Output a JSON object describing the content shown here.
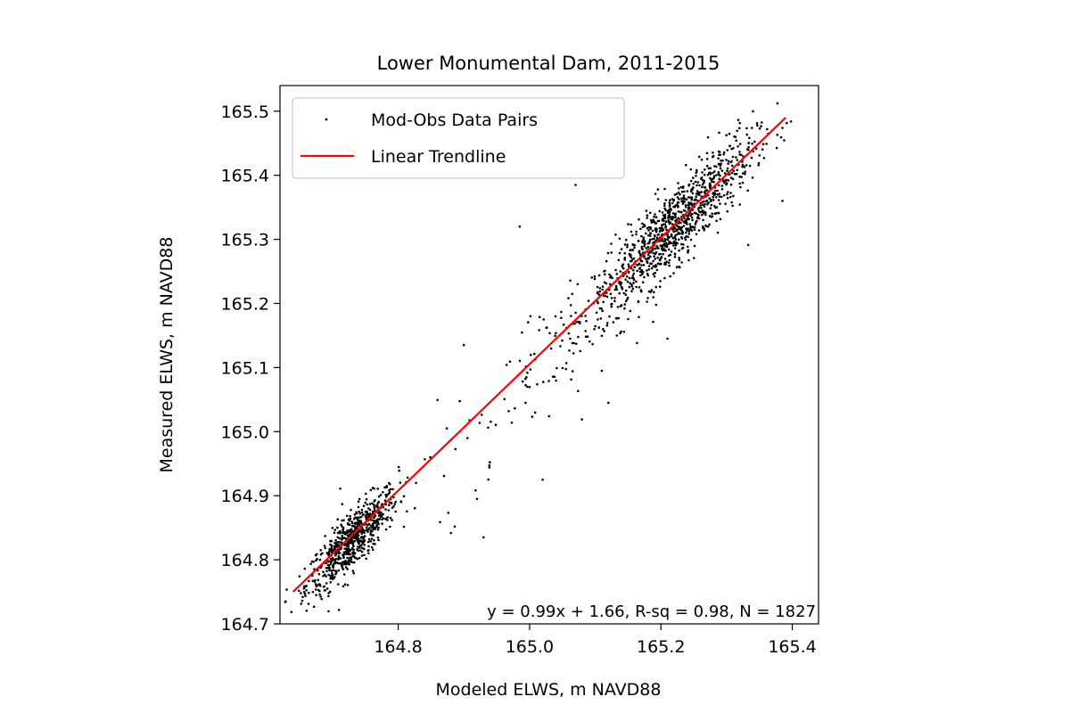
{
  "chart_data": {
    "type": "scatter",
    "title": "Lower Monumental Dam, 2011-2015",
    "xlabel": "Modeled ELWS, m NAVD88",
    "ylabel": "Measured ELWS, m NAVD88",
    "xlim": [
      164.62,
      165.44
    ],
    "ylim": [
      164.7,
      165.54
    ],
    "xticks": [
      "164.8",
      "165.0",
      "165.2",
      "165.4"
    ],
    "yticks": [
      "164.7",
      "164.8",
      "164.9",
      "165.0",
      "165.1",
      "165.2",
      "165.3",
      "165.4",
      "165.5"
    ],
    "legend": {
      "placement": "upper-left",
      "entries": [
        "Mod-Obs Data Pairs",
        "Linear Trendline"
      ]
    },
    "trendline": {
      "slope": 0.99,
      "intercept": 1.66,
      "x_range": [
        164.64,
        165.39
      ],
      "y_range": [
        164.75,
        165.49
      ],
      "color": "#ff0000"
    },
    "annotation": "y = 0.99x + 1.66, R-sq = 0.98, N = 1827",
    "point_color": "#000000",
    "clusters": [
      {
        "cx": 164.73,
        "cy": 164.83,
        "sx": 0.035,
        "sy": 0.04,
        "n": 700
      },
      {
        "cx": 165.22,
        "cy": 165.32,
        "sx": 0.06,
        "sy": 0.055,
        "n": 1000
      },
      {
        "cx": 165.05,
        "cy": 165.13,
        "sx": 0.1,
        "sy": 0.1,
        "n": 127
      }
    ],
    "outliers": [
      [
        164.61,
        164.75
      ],
      [
        165.385,
        165.36
      ],
      [
        164.93,
        164.835
      ],
      [
        165.02,
        164.925
      ],
      [
        164.92,
        164.895
      ],
      [
        165.07,
        165.385
      ],
      [
        164.985,
        165.32
      ],
      [
        165.11,
        165.095
      ],
      [
        165.12,
        165.045
      ],
      [
        164.9,
        165.135
      ],
      [
        165.21,
        165.145
      ]
    ]
  }
}
